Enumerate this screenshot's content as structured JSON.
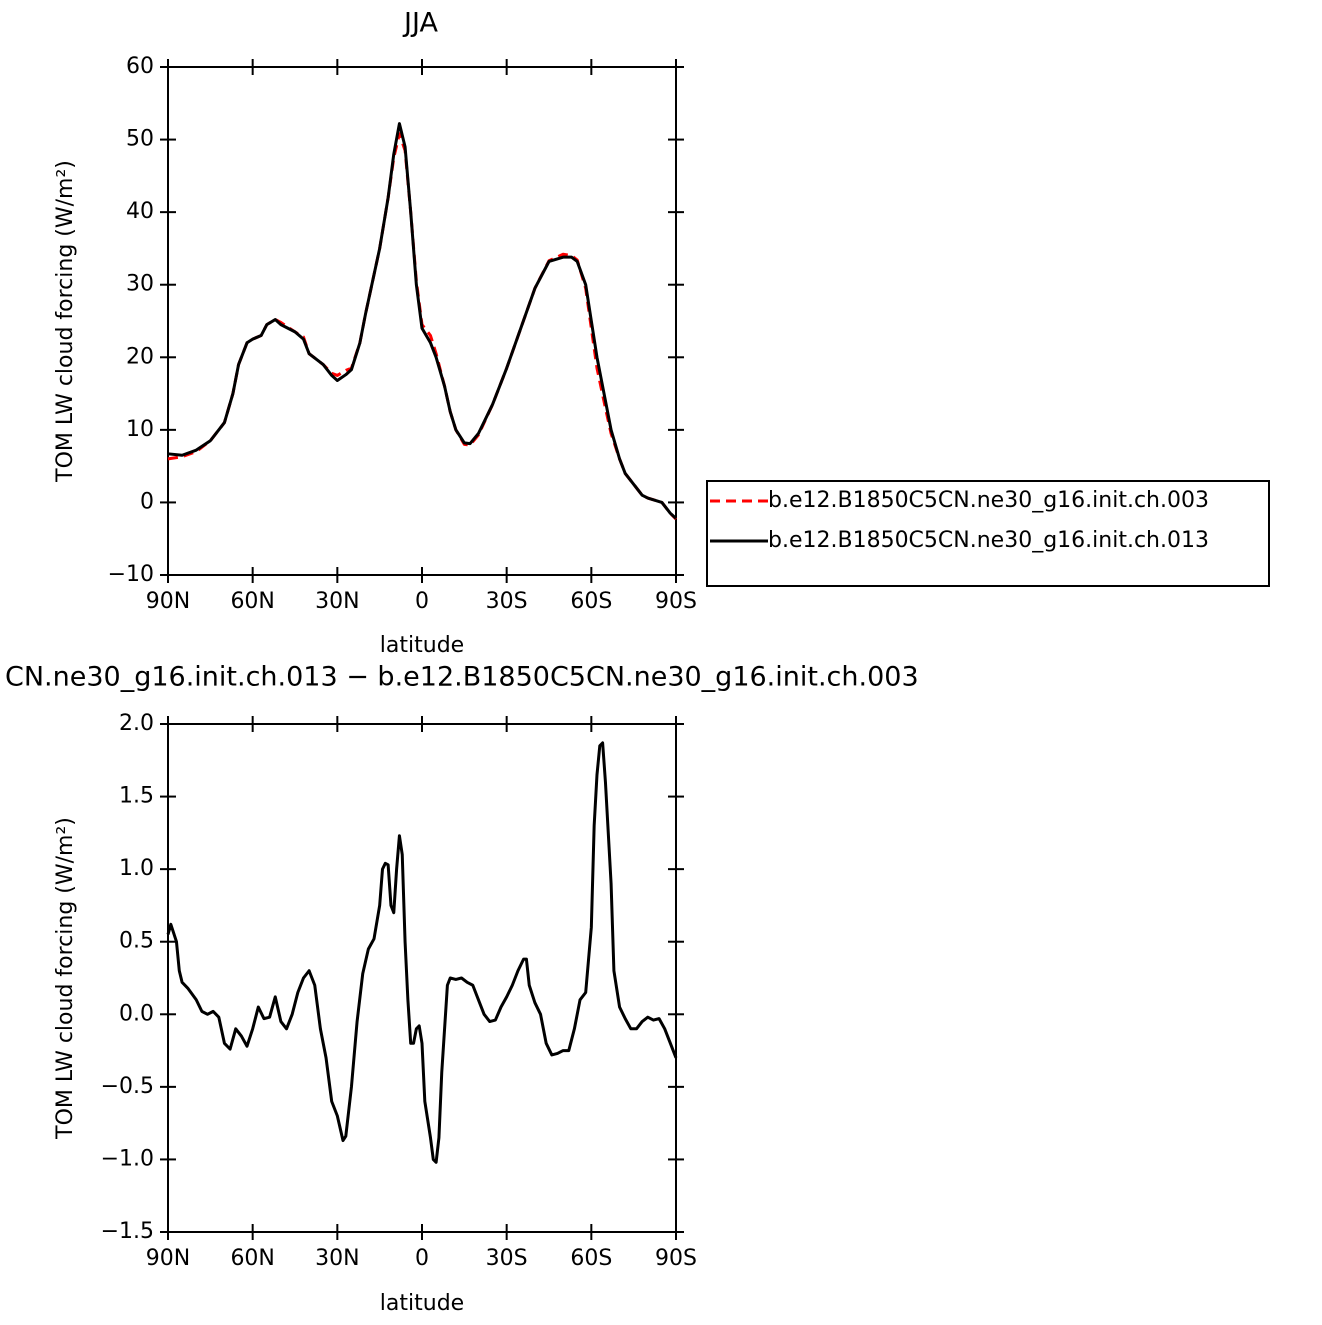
{
  "chart_data": [
    {
      "type": "line",
      "title": "JJA",
      "xlabel": "latitude",
      "ylabel": "TOM LW cloud forcing (W/m²)",
      "x": [
        90,
        85,
        80,
        75,
        70,
        67,
        65,
        62,
        60,
        57,
        55,
        52,
        50,
        45,
        42,
        40,
        35,
        32,
        30,
        27,
        25,
        22,
        20,
        15,
        12,
        10,
        8,
        6,
        4,
        2,
        0,
        -3,
        -5,
        -8,
        -10,
        -12,
        -15,
        -17,
        -20,
        -25,
        -30,
        -35,
        -40,
        -45,
        -50,
        -53,
        -55,
        -58,
        -60,
        -62,
        -65,
        -67,
        -70,
        -72,
        -75,
        -78,
        -80,
        -85,
        -88,
        -90
      ],
      "series": [
        {
          "name": "b.e12.B1850C5CN.ne30_g16.init.ch.003",
          "color": "#ff0000",
          "style": "dashed",
          "values": [
            6.0,
            6.3,
            7.0,
            8.5,
            11,
            15,
            19,
            22,
            22.5,
            23,
            24.5,
            25.2,
            24.8,
            23.5,
            22.8,
            20.5,
            19,
            17.8,
            17.5,
            18.2,
            18.5,
            22,
            26,
            35,
            42,
            47.5,
            50.8,
            48.5,
            40,
            30.5,
            24.5,
            23,
            20.5,
            16,
            12.5,
            10,
            8,
            7.9,
            9.3,
            13.5,
            18.5,
            24,
            29.5,
            33.3,
            34.2,
            34,
            33.4,
            29.5,
            24,
            18.5,
            13,
            9.5,
            6,
            4,
            2.5,
            1,
            0.6,
            0,
            -1.5,
            -2.3
          ]
        },
        {
          "name": "b.e12.B1850C5CN.ne30_g16.init.ch.013",
          "color": "#000000",
          "style": "solid",
          "values": [
            6.7,
            6.5,
            7.2,
            8.5,
            11,
            15,
            19,
            22,
            22.5,
            23,
            24.5,
            25.2,
            24.5,
            23.5,
            22.5,
            20.5,
            19,
            17.5,
            16.8,
            17.6,
            18.3,
            22,
            26,
            35,
            42,
            48,
            52.2,
            49,
            40,
            30,
            24,
            22,
            20,
            16,
            12.5,
            10,
            8.2,
            8.1,
            9.5,
            13.5,
            18.5,
            24,
            29.5,
            33.2,
            33.8,
            33.8,
            33.2,
            30,
            25,
            20,
            14,
            10,
            6,
            4,
            2.5,
            1,
            0.6,
            0,
            -1.5,
            -2.2
          ]
        }
      ],
      "xlim": [
        90,
        -90
      ],
      "xticks": [
        {
          "value": 90,
          "label": "90N"
        },
        {
          "value": 60,
          "label": "60N"
        },
        {
          "value": 30,
          "label": "30N"
        },
        0,
        {
          "value": -30,
          "label": "30S"
        },
        {
          "value": -60,
          "label": "60S"
        },
        {
          "value": -90,
          "label": "90S"
        }
      ],
      "ylim": [
        -10,
        60
      ],
      "yticks": [
        {
          "value": -10,
          "label": "−10"
        },
        0,
        10,
        20,
        30,
        40,
        50,
        60
      ],
      "grid": false,
      "legend": "right"
    },
    {
      "type": "line",
      "title": "CN.ne30_g16.init.ch.013 − b.e12.B1850C5CN.ne30_g16.init.ch.003",
      "xlabel": "latitude",
      "ylabel": "TOM LW cloud forcing (W/m²)",
      "x": [
        90,
        89,
        87,
        86,
        85,
        83,
        80,
        78,
        76,
        74,
        72,
        70,
        68,
        66,
        64,
        62,
        60,
        58,
        56,
        54,
        52,
        50,
        48,
        46,
        44,
        42,
        40,
        38,
        36,
        34,
        32,
        30,
        28,
        27,
        25,
        23,
        21,
        19,
        17,
        15,
        14,
        13,
        12,
        11,
        10,
        9,
        8,
        7,
        6,
        5,
        4,
        3,
        2,
        1,
        0,
        -1,
        -3,
        -4,
        -5,
        -6,
        -7,
        -9,
        -10,
        -12,
        -14,
        -16,
        -18,
        -20,
        -22,
        -24,
        -26,
        -28,
        -30,
        -32,
        -34,
        -36,
        -37,
        -38,
        -40,
        -42,
        -44,
        -46,
        -48,
        -50,
        -52,
        -54,
        -56,
        -58,
        -60,
        -61,
        -62,
        -63,
        -64,
        -65,
        -67,
        -68,
        -70,
        -72,
        -74,
        -76,
        -78,
        -80,
        -82,
        -84,
        -86,
        -88,
        -90
      ],
      "values": [
        0.55,
        0.62,
        0.5,
        0.3,
        0.22,
        0.18,
        0.1,
        0.02,
        0.0,
        0.02,
        -0.02,
        -0.2,
        -0.24,
        -0.1,
        -0.15,
        -0.22,
        -0.1,
        0.05,
        -0.03,
        -0.02,
        0.12,
        -0.05,
        -0.1,
        0.0,
        0.15,
        0.25,
        0.3,
        0.2,
        -0.1,
        -0.3,
        -0.6,
        -0.7,
        -0.87,
        -0.84,
        -0.5,
        -0.05,
        0.28,
        0.45,
        0.52,
        0.75,
        1.0,
        1.04,
        1.03,
        0.75,
        0.7,
        1.0,
        1.23,
        1.1,
        0.5,
        0.1,
        -0.2,
        -0.2,
        -0.1,
        -0.08,
        -0.2,
        -0.6,
        -0.85,
        -1.0,
        -1.02,
        -0.85,
        -0.4,
        0.2,
        0.25,
        0.24,
        0.25,
        0.22,
        0.2,
        0.1,
        0.0,
        -0.05,
        -0.04,
        0.05,
        0.12,
        0.2,
        0.3,
        0.38,
        0.38,
        0.2,
        0.08,
        0.0,
        -0.2,
        -0.28,
        -0.27,
        -0.25,
        -0.25,
        -0.1,
        0.1,
        0.15,
        0.6,
        1.3,
        1.65,
        1.85,
        1.87,
        1.6,
        0.9,
        0.3,
        0.05,
        -0.03,
        -0.1,
        -0.1,
        -0.05,
        -0.02,
        -0.04,
        -0.03,
        -0.1,
        -0.2,
        -0.3
      ],
      "color": "#000000",
      "xlim": [
        90,
        -90
      ],
      "xticks": [
        {
          "value": 90,
          "label": "90N"
        },
        {
          "value": 60,
          "label": "60N"
        },
        {
          "value": 30,
          "label": "30N"
        },
        0,
        {
          "value": -30,
          "label": "30S"
        },
        {
          "value": -60,
          "label": "60S"
        },
        {
          "value": -90,
          "label": "90S"
        }
      ],
      "ylim": [
        -1.5,
        2.0
      ],
      "yticks": [
        {
          "value": -1.5,
          "label": "−1.5"
        },
        {
          "value": -1.0,
          "label": "−1.0"
        },
        {
          "value": -0.5,
          "label": "−0.5"
        },
        {
          "value": 0.0,
          "label": "0.0"
        },
        0.5,
        {
          "value": 1.0,
          "label": "1.0"
        },
        1.5,
        {
          "value": 2.0,
          "label": "2.0"
        }
      ],
      "grid": false
    }
  ]
}
